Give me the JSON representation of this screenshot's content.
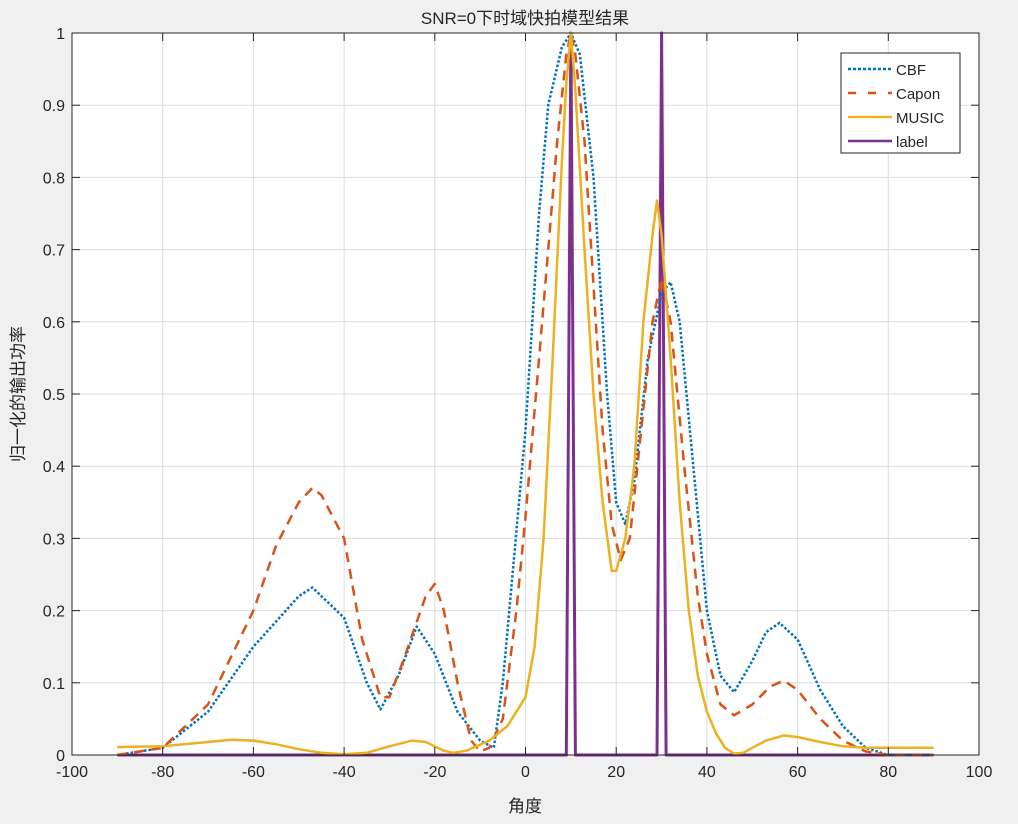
{
  "chart_data": {
    "type": "line",
    "title": "SNR=0下时域快拍模型结果",
    "xlabel": "角度",
    "ylabel": "归一化的输出功率",
    "xlim": [
      -100,
      100
    ],
    "ylim": [
      0,
      1
    ],
    "xticks": [
      -100,
      -80,
      -60,
      -40,
      -20,
      0,
      20,
      40,
      60,
      80,
      100
    ],
    "yticks": [
      0,
      0.1,
      0.2,
      0.3,
      0.4,
      0.5,
      0.6,
      0.7,
      0.8,
      0.9,
      1
    ],
    "ytick_labels": [
      "0",
      "0.1",
      "0.2",
      "0.3",
      "0.4",
      "0.5",
      "0.6",
      "0.7",
      "0.8",
      "0.9",
      "1"
    ],
    "grid": true,
    "legend_position": "top-right",
    "series": [
      {
        "name": "CBF",
        "color": "#0072BD",
        "style": "dotted",
        "x": [
          -90,
          -80,
          -70,
          -60,
          -50,
          -47,
          -40,
          -35,
          -32,
          -28,
          -24,
          -20,
          -15,
          -10,
          -7,
          -5,
          0,
          3,
          5,
          8,
          10,
          12,
          15,
          18,
          20,
          22,
          24,
          27,
          30,
          32,
          34,
          37,
          40,
          43,
          46,
          50,
          53,
          56,
          60,
          65,
          70,
          75,
          80,
          90
        ],
        "y": [
          0,
          0.01,
          0.06,
          0.15,
          0.22,
          0.232,
          0.19,
          0.1,
          0.063,
          0.11,
          0.178,
          0.14,
          0.06,
          0.02,
          0.01,
          0.1,
          0.45,
          0.75,
          0.9,
          0.98,
          1.0,
          0.97,
          0.8,
          0.5,
          0.35,
          0.32,
          0.38,
          0.55,
          0.64,
          0.655,
          0.6,
          0.4,
          0.2,
          0.11,
          0.087,
          0.13,
          0.17,
          0.183,
          0.16,
          0.09,
          0.04,
          0.01,
          0,
          0
        ]
      },
      {
        "name": "Capon",
        "color": "#D95319",
        "style": "dashed",
        "x": [
          -90,
          -80,
          -70,
          -60,
          -55,
          -50,
          -47,
          -45,
          -40,
          -36,
          -32,
          -30,
          -27,
          -22,
          -20,
          -18,
          -15,
          -12,
          -10,
          -8,
          -5,
          -2,
          0,
          3,
          5,
          7,
          9,
          10,
          11,
          13,
          15,
          17,
          19,
          21,
          23,
          25,
          28,
          30,
          32,
          35,
          38,
          40,
          43,
          46,
          50,
          54,
          57,
          60,
          65,
          70,
          75,
          80,
          90
        ],
        "y": [
          0,
          0.01,
          0.07,
          0.2,
          0.29,
          0.35,
          0.37,
          0.36,
          0.3,
          0.16,
          0.08,
          0.08,
          0.13,
          0.22,
          0.237,
          0.2,
          0.1,
          0.02,
          0.005,
          0.01,
          0.05,
          0.2,
          0.33,
          0.55,
          0.7,
          0.85,
          0.97,
          1.0,
          0.97,
          0.85,
          0.65,
          0.45,
          0.32,
          0.27,
          0.3,
          0.42,
          0.6,
          0.66,
          0.6,
          0.4,
          0.22,
          0.14,
          0.07,
          0.055,
          0.07,
          0.095,
          0.103,
          0.09,
          0.05,
          0.02,
          0.005,
          0,
          0
        ]
      },
      {
        "name": "MUSIC",
        "color": "#EDB120",
        "style": "solid",
        "x": [
          -90,
          -80,
          -70,
          -65,
          -60,
          -55,
          -50,
          -45,
          -40,
          -35,
          -30,
          -25,
          -22,
          -18,
          -16,
          -13,
          -8,
          -4,
          0,
          2,
          4,
          6,
          8,
          9,
          10,
          11,
          13,
          15,
          17,
          19,
          20,
          22,
          24,
          26,
          28,
          29,
          30,
          32,
          34,
          36,
          38,
          40,
          42,
          44,
          46,
          48,
          50,
          53,
          57,
          60,
          65,
          70,
          75,
          80,
          90
        ],
        "y": [
          0.011,
          0.012,
          0.018,
          0.021,
          0.02,
          0.015,
          0.008,
          0.003,
          0.001,
          0.003,
          0.012,
          0.02,
          0.018,
          0.006,
          0.003,
          0.006,
          0.02,
          0.04,
          0.08,
          0.15,
          0.3,
          0.55,
          0.82,
          0.93,
          1.0,
          0.92,
          0.7,
          0.5,
          0.35,
          0.255,
          0.255,
          0.3,
          0.4,
          0.6,
          0.72,
          0.768,
          0.72,
          0.55,
          0.35,
          0.2,
          0.11,
          0.06,
          0.03,
          0.01,
          0.002,
          0.003,
          0.01,
          0.02,
          0.027,
          0.025,
          0.018,
          0.012,
          0.01,
          0.01,
          0.01
        ]
      },
      {
        "name": "label",
        "color": "#7E2F8E",
        "style": "solid",
        "x": [
          -90,
          9,
          10,
          11,
          29,
          30,
          31,
          90
        ],
        "y": [
          0,
          0,
          1,
          0,
          0,
          1,
          0,
          0
        ]
      }
    ]
  }
}
